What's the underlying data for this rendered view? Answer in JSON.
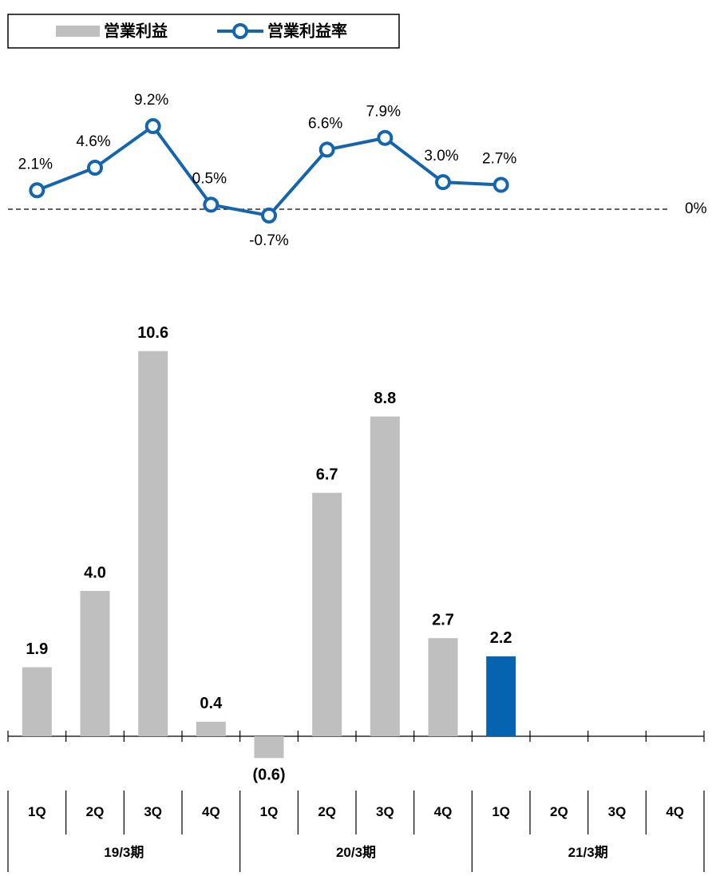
{
  "chart_data": {
    "type": "bar",
    "categories": [
      "1Q",
      "2Q",
      "3Q",
      "4Q",
      "1Q",
      "2Q",
      "3Q",
      "4Q",
      "1Q",
      "2Q",
      "3Q",
      "4Q"
    ],
    "groups": [
      "19/3期",
      "20/3期",
      "21/3期"
    ],
    "ylim": [
      -1,
      12
    ],
    "y2lim": [
      -2,
      10
    ],
    "y2ticks": [
      {
        "value": 0,
        "label": "0%"
      }
    ],
    "negative_label_color": "#ff0000",
    "series": [
      {
        "name": "営業利益",
        "type": "bar",
        "colors": [
          "#bfbfbf",
          "#bfbfbf",
          "#bfbfbf",
          "#bfbfbf",
          "#bfbfbf",
          "#bfbfbf",
          "#bfbfbf",
          "#bfbfbf",
          "#0563b0",
          null,
          null,
          null
        ],
        "values": [
          1.9,
          4.0,
          10.6,
          0.4,
          -0.6,
          6.7,
          8.8,
          2.7,
          2.2,
          null,
          null,
          null
        ],
        "value_labels": [
          "1.9",
          "4.0",
          "10.6",
          "0.4",
          "(0.6)",
          "6.7",
          "8.8",
          "2.7",
          "2.2",
          null,
          null,
          null
        ]
      },
      {
        "name": "営業利益率",
        "type": "line",
        "axis": "y2",
        "color": "#1565ae",
        "values": [
          2.1,
          4.6,
          9.2,
          0.5,
          -0.7,
          6.6,
          7.9,
          3.0,
          2.7,
          null,
          null,
          null
        ],
        "value_labels": [
          "2.1%",
          "4.6%",
          "9.2%",
          "0.5%",
          "-0.7%",
          "6.6%",
          "7.9%",
          "3.0%",
          "2.7%",
          null,
          null,
          null
        ]
      }
    ]
  }
}
